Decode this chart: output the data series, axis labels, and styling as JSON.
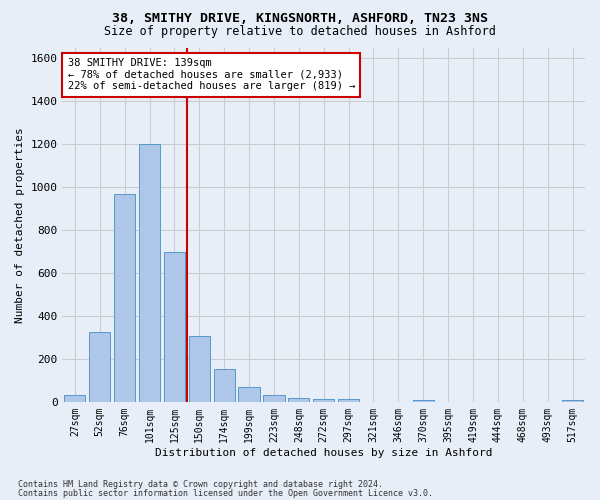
{
  "title1": "38, SMITHY DRIVE, KINGSNORTH, ASHFORD, TN23 3NS",
  "title2": "Size of property relative to detached houses in Ashford",
  "xlabel": "Distribution of detached houses by size in Ashford",
  "ylabel": "Number of detached properties",
  "footer1": "Contains HM Land Registry data © Crown copyright and database right 2024.",
  "footer2": "Contains public sector information licensed under the Open Government Licence v3.0.",
  "annotation_lines": [
    "38 SMITHY DRIVE: 139sqm",
    "← 78% of detached houses are smaller (2,933)",
    "22% of semi-detached houses are larger (819) →"
  ],
  "bar_labels": [
    "27sqm",
    "52sqm",
    "76sqm",
    "101sqm",
    "125sqm",
    "150sqm",
    "174sqm",
    "199sqm",
    "223sqm",
    "248sqm",
    "272sqm",
    "297sqm",
    "321sqm",
    "346sqm",
    "370sqm",
    "395sqm",
    "419sqm",
    "444sqm",
    "468sqm",
    "493sqm",
    "517sqm"
  ],
  "bar_values": [
    30,
    325,
    970,
    1200,
    700,
    305,
    155,
    70,
    30,
    20,
    15,
    15,
    0,
    0,
    10,
    0,
    0,
    0,
    0,
    0,
    10
  ],
  "bar_color": "#aec6e8",
  "bar_edge_color": "#5599cc",
  "vline_color": "#cc0000",
  "vline_x_index": 4.5,
  "ylim": [
    0,
    1650
  ],
  "yticks": [
    0,
    200,
    400,
    600,
    800,
    1000,
    1200,
    1400,
    1600
  ],
  "annotation_box_color": "#cc0000",
  "annotation_box_fill": "#ffffff",
  "grid_color": "#cccccc",
  "bg_color": "#e8eef8"
}
